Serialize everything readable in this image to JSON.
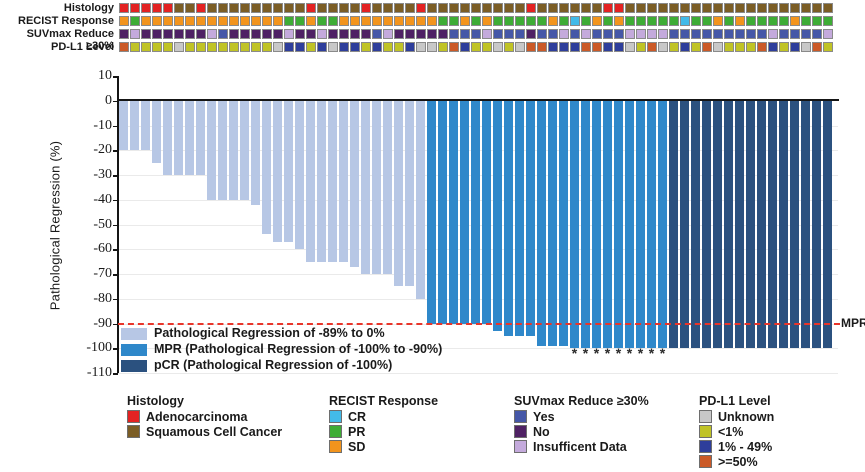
{
  "figure_title": "",
  "annotation_tracks": [
    {
      "label": "Histology",
      "codes": {
        "A": "Adenocarcinoma",
        "S": "Squamous Cell Cancer"
      },
      "palette": {
        "A": "#e32222",
        "S": "#7b5d25"
      },
      "values": "AAAAASSASSSSSSSSSASSSSASSSSASSSSSSSSSASSSSSSAASSSSSSSSSSSSSSSSSSS"
    },
    {
      "label": "RECIST Response",
      "codes": {
        "C": "CR",
        "P": "PR",
        "O": "SD"
      },
      "palette": {
        "C": "#43bbe9",
        "P": "#3eac35",
        "O": "#f2941d"
      },
      "values": "OPOOOOOOOOOOOOOPPOPPOOOOOOOOOPPOPOPPPPPOPCPOPOPPPPPCPPOPOPPPPOPPP"
    },
    {
      "label": "SUVmax Reduce ≥30%",
      "codes": {
        "Y": "Yes",
        "N": "No",
        "I": "Insufficent Data"
      },
      "palette": {
        "Y": "#4557a7",
        "N": "#4f2164",
        "I": "#c4aadc"
      },
      "values": "NINNNNNNIYNNNNNINNINNNNYINNNNNYYYIYYYNYYIYIYYYIIIIYYYYYYYYYIYYYYI"
    },
    {
      "label": "PD-L1 Level",
      "codes": {
        "U": "Unknown",
        "L": "<1%",
        "M": "1% - 49%",
        "H": ">=50%"
      },
      "palette": {
        "U": "#c8c8c8",
        "L": "#c0c326",
        "M": "#2e3e9b",
        "H": "#cb5a28"
      },
      "values": "HLLLLULLLLLLLLUMMLMUMMLMLLMUULHMLLULUHHMMMHHMMULHULMLHULLLHMLMUHL"
    }
  ],
  "chart_data": {
    "type": "bar",
    "title": "",
    "xlabel": "",
    "ylabel": "Pathological Regression (%)",
    "ylim": [
      -110,
      10
    ],
    "yticks": [
      10,
      0,
      -10,
      -20,
      -30,
      -40,
      -50,
      -60,
      -70,
      -80,
      -90,
      -100,
      -110
    ],
    "grid": true,
    "n_columns": 65,
    "values": [
      -20,
      -20,
      -20,
      -25,
      -30,
      -30,
      -30,
      -30,
      -40,
      -40,
      -40,
      -40,
      -42,
      -54,
      -57,
      -57,
      -60,
      -65,
      -65,
      -65,
      -65,
      -67,
      -70,
      -70,
      -70,
      -75,
      -75,
      -80,
      -90,
      -90,
      -90,
      -90,
      -90,
      -90,
      -93,
      -95,
      -95,
      -95,
      -99,
      -99,
      -99,
      -100,
      -100,
      -100,
      -100,
      -100,
      -100,
      -100,
      -100,
      -100,
      -100,
      -100,
      -100,
      -100,
      -100,
      -100,
      -100,
      -100,
      -100,
      -100,
      -100,
      -100,
      -100,
      -100,
      -100
    ],
    "segments": [
      {
        "key": "regression",
        "count": 28
      },
      {
        "key": "mpr",
        "count": 22
      },
      {
        "key": "pcr",
        "count": 15
      }
    ],
    "series_legend": [
      {
        "key": "regression",
        "label": "Pathological Regression of -89% to 0%",
        "color": "#b7c7e5"
      },
      {
        "key": "mpr",
        "label": "MPR (Pathological Regression of -100% to -90%)",
        "color": "#2f88ca"
      },
      {
        "key": "pcr",
        "label": "pCR (Pathological Regression of -100%)",
        "color": "#2b517f"
      }
    ],
    "asterisk_columns": [
      42,
      43,
      44,
      45,
      46,
      47,
      48,
      49,
      50
    ],
    "asterisk_symbol": "*",
    "mpr_line": {
      "value": -90,
      "label": "MPR",
      "color": "#e8352a"
    }
  },
  "legend_groups": [
    {
      "title": "Histology",
      "items": [
        {
          "label": "Adenocarcinoma",
          "color": "#e32222"
        },
        {
          "label": "Squamous Cell Cancer",
          "color": "#7b5d25"
        }
      ]
    },
    {
      "title": "RECIST Response",
      "items": [
        {
          "label": "CR",
          "color": "#43bbe9"
        },
        {
          "label": "PR",
          "color": "#3eac35"
        },
        {
          "label": "SD",
          "color": "#f2941d"
        }
      ]
    },
    {
      "title": "SUVmax Reduce ≥30%",
      "items": [
        {
          "label": "Yes",
          "color": "#4557a7"
        },
        {
          "label": "No",
          "color": "#4f2164"
        },
        {
          "label": "Insufficent Data",
          "color": "#c4aadc"
        }
      ]
    },
    {
      "title": "PD-L1 Level",
      "items": [
        {
          "label": "Unknown",
          "color": "#c8c8c8"
        },
        {
          "label": "<1%",
          "color": "#c0c326"
        },
        {
          "label": "1% - 49%",
          "color": "#2e3e9b"
        },
        {
          "label": ">=50%",
          "color": "#cb5a28"
        }
      ]
    }
  ]
}
